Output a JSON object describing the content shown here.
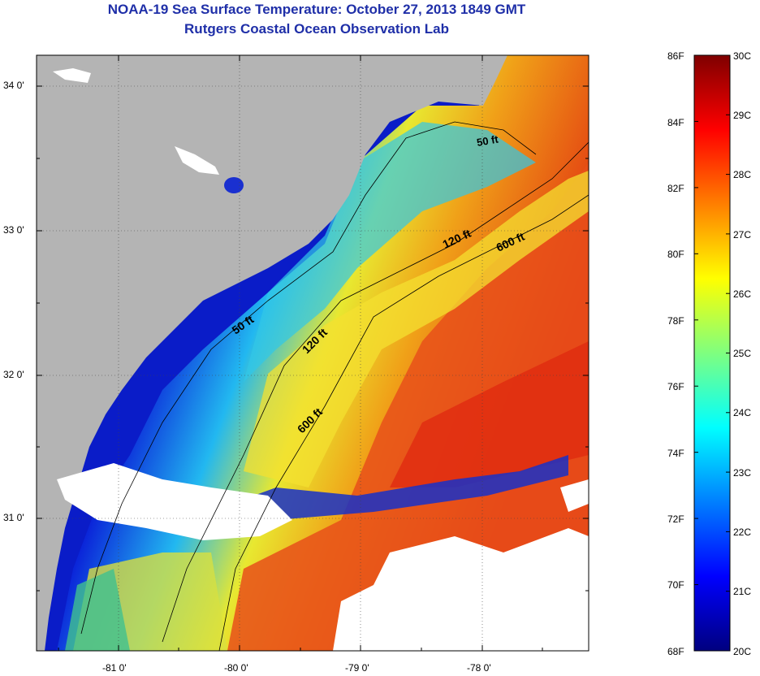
{
  "title": "NOAA-19 Sea Surface Temperature:  October 27, 2013 1849 GMT",
  "subtitle": "Rutgers Coastal Ocean Observation Lab",
  "map": {
    "lat_ticks": [
      "34 0'",
      "33 0'",
      "32 0'",
      "31 0'"
    ],
    "lon_ticks": [
      "-81 0'",
      "-80 0'",
      "-79 0'",
      "-78 0'"
    ],
    "isobath_labels": [
      "50 ft",
      "120 ft",
      "600 ft",
      "50 ft",
      "120 ft",
      "600 ft"
    ],
    "colors": {
      "land": "#b4b4b4",
      "cloud": "#ffffff",
      "cold": "#0a1cc8",
      "warm": "#e83010"
    }
  },
  "colorbar": {
    "f_labels": [
      "86F",
      "84F",
      "82F",
      "80F",
      "78F",
      "76F",
      "74F",
      "72F",
      "70F",
      "68F"
    ],
    "c_labels": [
      "30C",
      "29C",
      "28C",
      "27C",
      "26C",
      "25C",
      "24C",
      "23C",
      "22C",
      "21C",
      "20C"
    ],
    "min_c": 20,
    "max_c": 30,
    "stops": [
      "#00007f",
      "#0000ff",
      "#007fff",
      "#00ffff",
      "#7fff7f",
      "#ffff00",
      "#ff7f00",
      "#ff0000",
      "#7f0000"
    ]
  }
}
